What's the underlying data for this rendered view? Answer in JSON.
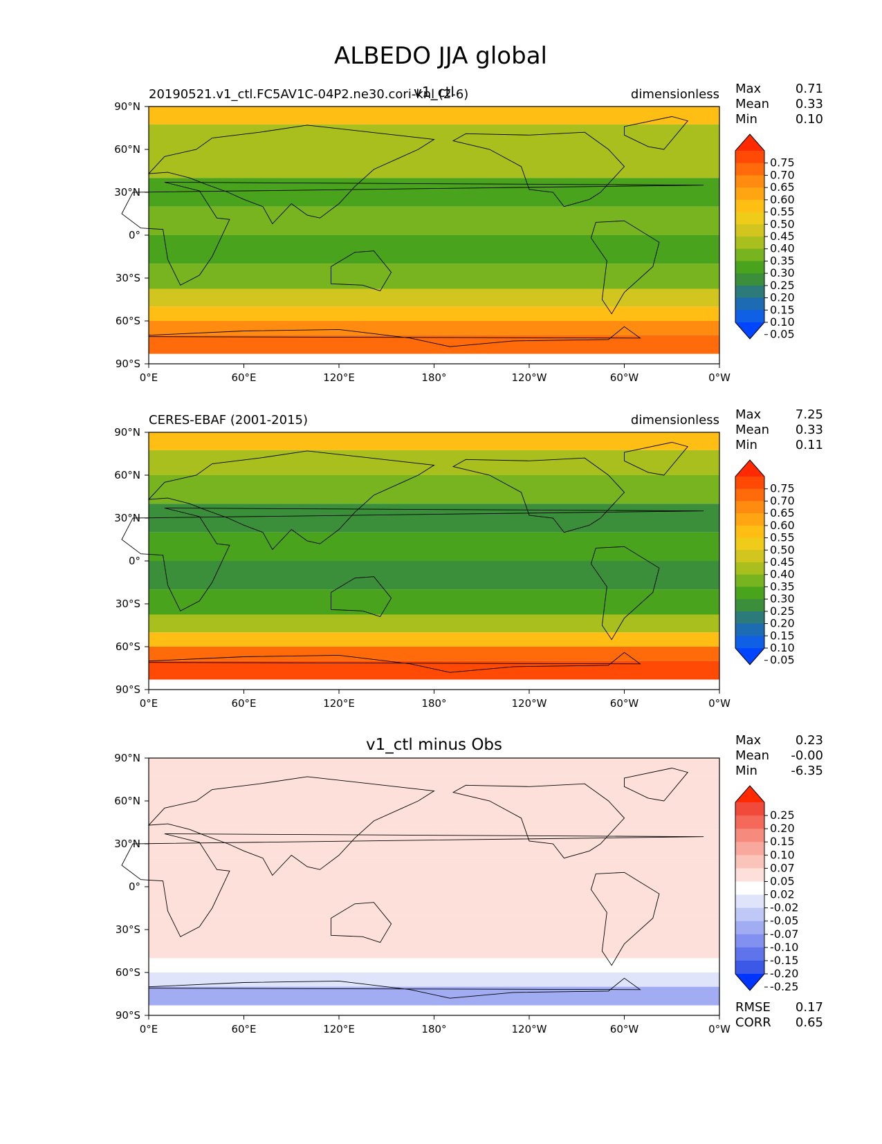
{
  "figure": {
    "title": "ALBEDO JJA global"
  },
  "chart_data": [
    {
      "type": "heatmap",
      "panel_id": "test",
      "title": "v1_ctl",
      "left_label": "20190521.v1_ctl.FC5AV1C-04P2.ne30.cori-knl (2-6)",
      "units": "dimensionless",
      "xlabel": "",
      "ylabel": "",
      "x_ticks": [
        "0°E",
        "60°E",
        "120°E",
        "180°",
        "120°W",
        "60°W",
        "0°W"
      ],
      "y_ticks": [
        "90°N",
        "60°N",
        "30°N",
        "0°",
        "30°S",
        "60°S",
        "90°S"
      ],
      "xlim": [
        0,
        360
      ],
      "ylim": [
        -90,
        90
      ],
      "stats": [
        {
          "label": "Max",
          "value": "0.71"
        },
        {
          "label": "Mean",
          "value": "0.33"
        },
        {
          "label": "Min",
          "value": "0.10"
        }
      ],
      "colorbar": {
        "labels": [
          "0.75",
          "0.70",
          "0.65",
          "0.60",
          "0.55",
          "0.50",
          "0.45",
          "0.40",
          "0.35",
          "0.30",
          "0.25",
          "0.20",
          "0.15",
          "0.10",
          "0.05"
        ],
        "colors": [
          "#ff2a00",
          "#ff4a05",
          "#ff6a0a",
          "#ff8c10",
          "#ffa512",
          "#ffbe14",
          "#f0cc1a",
          "#d2c520",
          "#a9bf1e",
          "#78b420",
          "#4aa31c",
          "#3b8f3a",
          "#2c7a7a",
          "#1c6bb3",
          "#1060e6",
          "#0045ff"
        ]
      },
      "zonal_band_means": [
        {
          "lat": 85,
          "value": 0.55
        },
        {
          "lat": 70,
          "value": 0.4
        },
        {
          "lat": 50,
          "value": 0.35
        },
        {
          "lat": 30,
          "value": 0.25
        },
        {
          "lat": 10,
          "value": 0.3
        },
        {
          "lat": -10,
          "value": 0.28
        },
        {
          "lat": -30,
          "value": 0.3
        },
        {
          "lat": -45,
          "value": 0.45
        },
        {
          "lat": -55,
          "value": 0.55
        },
        {
          "lat": -65,
          "value": 0.65
        },
        {
          "lat": -75,
          "value": 0.7
        }
      ]
    },
    {
      "type": "heatmap",
      "panel_id": "ref",
      "title": "",
      "left_label": "CERES-EBAF (2001-2015)",
      "units": "dimensionless",
      "xlabel": "",
      "ylabel": "",
      "x_ticks": [
        "0°E",
        "60°E",
        "120°E",
        "180°",
        "120°W",
        "60°W",
        "0°W"
      ],
      "y_ticks": [
        "90°N",
        "60°N",
        "30°N",
        "0°",
        "30°S",
        "60°S",
        "90°S"
      ],
      "xlim": [
        0,
        360
      ],
      "ylim": [
        -90,
        90
      ],
      "stats": [
        {
          "label": "Max",
          "value": "7.25"
        },
        {
          "label": "Mean",
          "value": "0.33"
        },
        {
          "label": "Min",
          "value": "0.11"
        }
      ],
      "colorbar": {
        "labels": [
          "0.75",
          "0.70",
          "0.65",
          "0.60",
          "0.55",
          "0.50",
          "0.45",
          "0.40",
          "0.35",
          "0.30",
          "0.25",
          "0.20",
          "0.15",
          "0.10",
          "0.05"
        ],
        "colors": [
          "#ff2a00",
          "#ff4a05",
          "#ff6a0a",
          "#ff8c10",
          "#ffa512",
          "#ffbe14",
          "#f0cc1a",
          "#d2c520",
          "#a9bf1e",
          "#78b420",
          "#4aa31c",
          "#3b8f3a",
          "#2c7a7a",
          "#1c6bb3",
          "#1060e6",
          "#0045ff"
        ]
      },
      "zonal_band_means": [
        {
          "lat": 85,
          "value": 0.55
        },
        {
          "lat": 70,
          "value": 0.4
        },
        {
          "lat": 50,
          "value": 0.3
        },
        {
          "lat": 30,
          "value": 0.22
        },
        {
          "lat": 10,
          "value": 0.25
        },
        {
          "lat": -10,
          "value": 0.22
        },
        {
          "lat": -30,
          "value": 0.28
        },
        {
          "lat": -45,
          "value": 0.4
        },
        {
          "lat": -55,
          "value": 0.55
        },
        {
          "lat": -65,
          "value": 0.7
        },
        {
          "lat": -75,
          "value": 0.75
        }
      ]
    },
    {
      "type": "heatmap",
      "panel_id": "diff",
      "title": "v1_ctl minus Obs",
      "left_label": "",
      "units": "",
      "xlabel": "",
      "ylabel": "",
      "x_ticks": [
        "0°E",
        "60°E",
        "120°E",
        "180°",
        "120°W",
        "60°W",
        "0°W"
      ],
      "y_ticks": [
        "90°N",
        "60°N",
        "30°N",
        "0°",
        "30°S",
        "60°S",
        "90°S"
      ],
      "xlim": [
        0,
        360
      ],
      "ylim": [
        -90,
        90
      ],
      "stats": [
        {
          "label": "Max",
          "value": "0.23"
        },
        {
          "label": "Mean",
          "value": "-0.00"
        },
        {
          "label": "Min",
          "value": "-6.35"
        }
      ],
      "extra_stats": [
        {
          "label": "RMSE",
          "value": "0.17"
        },
        {
          "label": "CORR",
          "value": "0.65"
        }
      ],
      "colorbar": {
        "labels": [
          "0.25",
          "0.20",
          "0.15",
          "0.10",
          "0.07",
          "0.05",
          "0.02",
          "-0.02",
          "-0.05",
          "-0.07",
          "-0.10",
          "-0.15",
          "-0.20",
          "-0.25"
        ],
        "colors": [
          "#ff2a00",
          "#f24a3a",
          "#f4695a",
          "#f68a7c",
          "#f8a89c",
          "#fac4bb",
          "#fde0da",
          "#ffffff",
          "#dfe4fb",
          "#c0c8f7",
          "#a1acf3",
          "#8290ef",
          "#5f74eb",
          "#3c58e7",
          "#0035ff"
        ]
      },
      "zonal_band_means": [
        {
          "lat": 85,
          "value": 0.05
        },
        {
          "lat": 70,
          "value": 0.05
        },
        {
          "lat": 50,
          "value": 0.03
        },
        {
          "lat": 30,
          "value": 0.02
        },
        {
          "lat": 10,
          "value": 0.04
        },
        {
          "lat": -10,
          "value": 0.05
        },
        {
          "lat": -30,
          "value": 0.03
        },
        {
          "lat": -45,
          "value": 0.05
        },
        {
          "lat": -55,
          "value": 0.0
        },
        {
          "lat": -65,
          "value": -0.05
        },
        {
          "lat": -75,
          "value": -0.1
        }
      ]
    }
  ]
}
